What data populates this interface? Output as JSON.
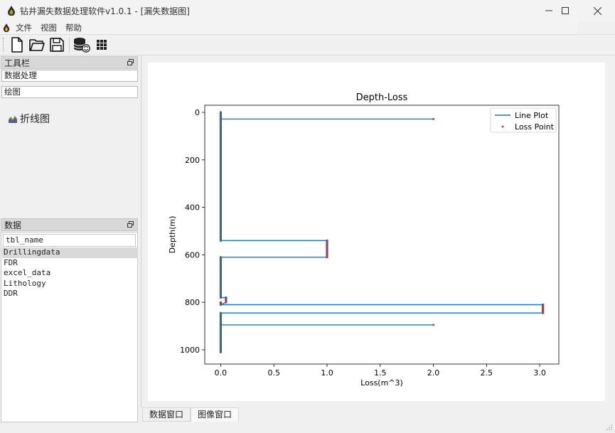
{
  "window": {
    "title": "钻井漏失数据处理软件v1.0.1 - [漏失数据图]",
    "minimize": "—",
    "maximize": "☐",
    "close": "✕"
  },
  "menu": {
    "items": [
      "文件",
      "视图",
      "帮助"
    ]
  },
  "toolbar": {
    "icons": [
      "new-file-icon",
      "open-folder-icon",
      "save-icon",
      "database-refresh-icon",
      "grid-icon"
    ]
  },
  "toolbox": {
    "title": "工具栏",
    "buttons": [
      "数据处理",
      "绘图"
    ],
    "tree": {
      "item_label": "折线图",
      "item_icon": "area-chart-icon"
    }
  },
  "data_panel": {
    "title": "数据",
    "header": "tbl_name",
    "rows": [
      "Drillingdata",
      "FDR",
      "excel_data",
      "Lithology",
      "DDR"
    ],
    "selected": "Drillingdata"
  },
  "tabs": [
    "数据窗口",
    "图像窗口"
  ],
  "active_tab": "图像窗口",
  "colors": {
    "line": "#1f77b4",
    "points": "#d62728"
  },
  "chart_data": {
    "type": "line",
    "title": "Depth-Loss",
    "xlabel": "Loss(m^3)",
    "ylabel": "Depth(m)",
    "xlim": [
      -0.15,
      3.18
    ],
    "ylim": [
      1060,
      -30
    ],
    "y_inverted": true,
    "xticks": [
      0.0,
      0.5,
      1.0,
      1.5,
      2.0,
      2.5,
      3.0
    ],
    "xtick_labels": [
      "0.0",
      "0.5",
      "1.0",
      "1.5",
      "2.0",
      "2.5",
      "3.0"
    ],
    "yticks": [
      0,
      200,
      400,
      600,
      800,
      1000
    ],
    "ytick_labels": [
      "0",
      "200",
      "400",
      "600",
      "800",
      "1000"
    ],
    "legend": {
      "position": "top-right",
      "entries": [
        "Line Plot",
        "Loss Point"
      ]
    },
    "series": [
      {
        "name": "Line Plot",
        "style": "line",
        "x": [
          0,
          0,
          2.0,
          0,
          0,
          1.0,
          1.0,
          0,
          0,
          0.05,
          0.05,
          0,
          3.03,
          3.03,
          0,
          0,
          2.0,
          0,
          0
        ],
        "y": [
          0,
          28,
          28,
          28,
          540,
          540,
          610,
          610,
          780,
          780,
          800,
          810,
          810,
          845,
          845,
          895,
          895,
          895,
          1010
        ]
      },
      {
        "name": "Loss Point",
        "style": "scatter",
        "segments": [
          {
            "x": 0,
            "y_from": 0,
            "y_to": 540
          },
          {
            "x": 2.0,
            "y_from": 28,
            "y_to": 28
          },
          {
            "x": 1.0,
            "y_from": 540,
            "y_to": 610
          },
          {
            "x": 0,
            "y_from": 610,
            "y_to": 780
          },
          {
            "x": 0.05,
            "y_from": 780,
            "y_to": 800
          },
          {
            "x": 0,
            "y_from": 800,
            "y_to": 810
          },
          {
            "x": 3.03,
            "y_from": 810,
            "y_to": 845
          },
          {
            "x": 0,
            "y_from": 845,
            "y_to": 1010
          },
          {
            "x": 2.0,
            "y_from": 895,
            "y_to": 895
          }
        ]
      }
    ]
  }
}
